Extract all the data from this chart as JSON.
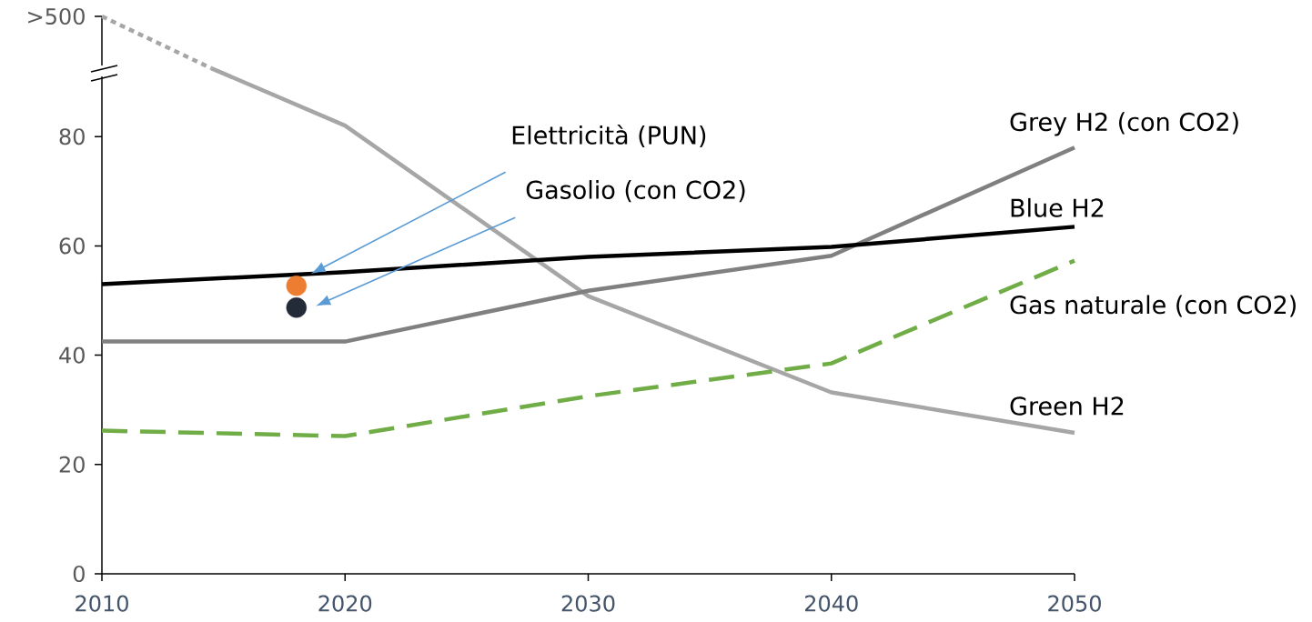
{
  "chart_data": {
    "type": "line",
    "xlim": [
      2010,
      2050
    ],
    "xticks": [
      2010,
      2020,
      2030,
      2040,
      2050
    ],
    "ylim": [
      0,
      102
    ],
    "yticks": [
      0,
      20,
      40,
      60,
      80,
      {
        "value": 102,
        "label": ">500"
      }
    ],
    "grid": false,
    "annotations": [
      "Elettricità (PUN)",
      "Gasolio (con CO2)"
    ],
    "series": [
      {
        "name": "Green H2",
        "color": "#a6a6a6",
        "line_style": "solid",
        "x": [
          2014.5,
          2020,
          2030,
          2040,
          2050
        ],
        "values": [
          92.5,
          82,
          50.8,
          33.2,
          25.8
        ]
      },
      {
        "color": "#a6a6a6",
        "line_style": "dotted",
        "x": [
          2010,
          2014.5
        ],
        "values": [
          102,
          92.5
        ]
      },
      {
        "name": "Grey H2 (con CO2)",
        "color": "#808080",
        "line_style": "solid",
        "x": [
          2010,
          2020,
          2030,
          2040,
          2050
        ],
        "values": [
          42.5,
          42.5,
          51.8,
          58.2,
          78
        ]
      },
      {
        "name": "Blue H2",
        "color": "#000000",
        "line_style": "solid",
        "x": [
          2010,
          2020,
          2030,
          2040,
          2050
        ],
        "values": [
          53,
          55.2,
          58,
          59.8,
          63.5
        ]
      },
      {
        "name": "Gas naturale (con CO2)",
        "color": "#70ad47",
        "line_style": "dashed",
        "x": [
          2010,
          2020,
          2030,
          2040,
          2050
        ],
        "values": [
          26.2,
          25.2,
          32.5,
          38.5,
          57.3
        ]
      },
      {
        "type": "scatter",
        "marker": "circle",
        "color": "#ed7d31",
        "x": [
          2018
        ],
        "values": [
          52.7
        ]
      },
      {
        "type": "scatter",
        "marker": "circle",
        "color": "#232b38",
        "x": [
          2018
        ],
        "values": [
          48.7
        ]
      }
    ]
  }
}
